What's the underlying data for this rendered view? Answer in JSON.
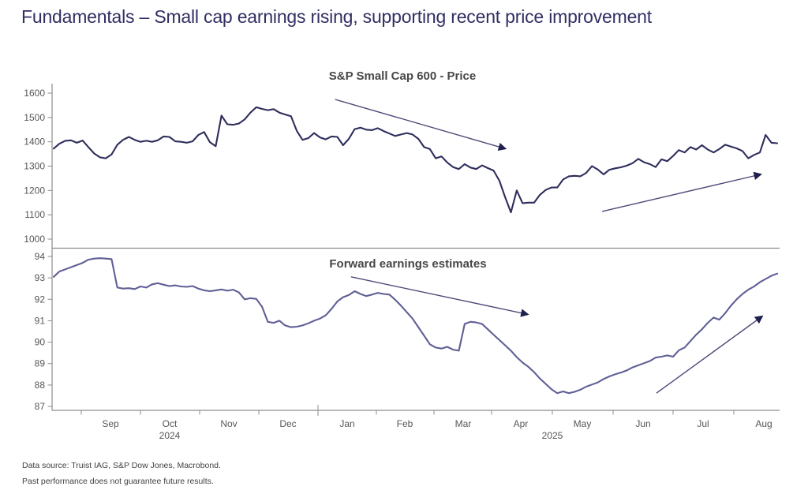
{
  "title": "Fundamentals – Small cap earnings rising, supporting recent price improvement",
  "footer": {
    "source": "Data source: Truist IAG, S&P Dow Jones, Macrobond.",
    "disclaimer": "Past performance does not guarantee future results."
  },
  "colors": {
    "title_text": "#312f63",
    "panel_title_text": "#474747",
    "price_line": "#2e2e5c",
    "earnings_line": "#5f5f96",
    "arrow": "#4c4b78",
    "arrowhead": "#1f1f4e",
    "axis": "#8c8c8c",
    "tick_text": "#575757",
    "footer_text": "#414141"
  },
  "x_axis": {
    "months": [
      {
        "label": "Sep",
        "f": 0.0785
      },
      {
        "label": "Oct",
        "f": 0.1603
      },
      {
        "label": "Nov",
        "f": 0.2421
      },
      {
        "label": "Dec",
        "f": 0.3239
      },
      {
        "label": "Jan",
        "f": 0.4057
      },
      {
        "label": "Feb",
        "f": 0.4853
      },
      {
        "label": "Mar",
        "f": 0.566
      },
      {
        "label": "Apr",
        "f": 0.6456
      },
      {
        "label": "May",
        "f": 0.7306
      },
      {
        "label": "Jun",
        "f": 0.8146
      },
      {
        "label": "Jul",
        "f": 0.8975
      },
      {
        "label": "Aug",
        "f": 0.9815
      }
    ],
    "years": [
      {
        "label": "2024",
        "f": 0.1603
      },
      {
        "label": "2025",
        "f": 0.6892
      }
    ],
    "month_boundaries": [
      0.0382,
      0.12,
      0.2017,
      0.2835,
      0.3653,
      0.446,
      0.5256,
      0.6052,
      0.6892,
      0.7732,
      0.856,
      0.94
    ],
    "year_boundary_f": 0.3653
  },
  "chart_data": [
    {
      "type": "line",
      "id": "price",
      "title": "S&P Small Cap 600 - Price",
      "x_range": [
        "Aug 2024",
        "Aug 2025"
      ],
      "ylim": [
        1000,
        1600
      ],
      "yticks": [
        1600,
        1500,
        1400,
        1300,
        1200,
        1100,
        1000
      ],
      "color": "#2e2e5c",
      "values": [
        1372,
        1392,
        1404,
        1406,
        1396,
        1405,
        1378,
        1352,
        1336,
        1332,
        1348,
        1388,
        1408,
        1420,
        1408,
        1400,
        1404,
        1400,
        1406,
        1422,
        1420,
        1402,
        1400,
        1396,
        1402,
        1428,
        1440,
        1398,
        1382,
        1508,
        1472,
        1470,
        1475,
        1492,
        1520,
        1542,
        1535,
        1530,
        1534,
        1520,
        1512,
        1505,
        1445,
        1408,
        1415,
        1436,
        1418,
        1410,
        1422,
        1420,
        1386,
        1412,
        1452,
        1458,
        1450,
        1448,
        1456,
        1444,
        1434,
        1424,
        1430,
        1436,
        1430,
        1412,
        1378,
        1370,
        1332,
        1340,
        1315,
        1296,
        1288,
        1308,
        1294,
        1288,
        1303,
        1292,
        1282,
        1240,
        1172,
        1110,
        1200,
        1148,
        1150,
        1150,
        1182,
        1202,
        1212,
        1212,
        1245,
        1258,
        1260,
        1258,
        1272,
        1300,
        1286,
        1266,
        1285,
        1291,
        1295,
        1302,
        1312,
        1330,
        1316,
        1308,
        1296,
        1328,
        1320,
        1342,
        1366,
        1356,
        1378,
        1368,
        1386,
        1368,
        1356,
        1370,
        1388,
        1380,
        1373,
        1362,
        1332,
        1346,
        1356,
        1428,
        1396,
        1394
      ],
      "trend_arrows": [
        {
          "x1": 0.389,
          "y1": 1574,
          "x2": 0.624,
          "y2": 1372,
          "direction": "down"
        },
        {
          "x1": 0.758,
          "y1": 1114,
          "x2": 0.977,
          "y2": 1266,
          "direction": "up"
        }
      ]
    },
    {
      "type": "line",
      "id": "earnings",
      "title": "Forward earnings estimates",
      "x_range": [
        "Aug 2024",
        "Aug 2025"
      ],
      "ylim": [
        87,
        94
      ],
      "yticks": [
        94,
        93,
        92,
        91,
        90,
        89,
        88,
        87
      ],
      "color": "#5f5f96",
      "values": [
        93.05,
        93.3,
        93.4,
        93.5,
        93.6,
        93.7,
        93.85,
        93.9,
        93.92,
        93.9,
        93.88,
        92.55,
        92.5,
        92.52,
        92.48,
        92.6,
        92.55,
        92.7,
        92.75,
        92.68,
        92.62,
        92.65,
        92.6,
        92.58,
        92.62,
        92.5,
        92.42,
        92.38,
        92.42,
        92.46,
        92.4,
        92.45,
        92.32,
        92.0,
        92.05,
        92.02,
        91.65,
        90.95,
        90.9,
        91.0,
        90.78,
        90.7,
        90.72,
        90.78,
        90.88,
        91.0,
        91.1,
        91.25,
        91.55,
        91.9,
        92.1,
        92.2,
        92.38,
        92.25,
        92.15,
        92.22,
        92.3,
        92.25,
        92.22,
        91.98,
        91.7,
        91.4,
        91.1,
        90.7,
        90.3,
        89.9,
        89.75,
        89.7,
        89.78,
        89.65,
        89.6,
        90.85,
        90.95,
        90.92,
        90.85,
        90.6,
        90.35,
        90.1,
        89.85,
        89.6,
        89.3,
        89.05,
        88.85,
        88.6,
        88.3,
        88.05,
        87.8,
        87.62,
        87.7,
        87.62,
        87.68,
        87.78,
        87.92,
        88.02,
        88.12,
        88.28,
        88.4,
        88.5,
        88.58,
        88.68,
        88.82,
        88.92,
        89.02,
        89.12,
        89.28,
        89.32,
        89.38,
        89.32,
        89.62,
        89.75,
        90.05,
        90.35,
        90.6,
        90.9,
        91.15,
        91.05,
        91.35,
        91.7,
        92.0,
        92.25,
        92.45,
        92.6,
        92.8,
        92.95,
        93.1,
        93.2
      ],
      "trend_arrows": [
        {
          "x1": 0.411,
          "y1": 93.05,
          "x2": 0.655,
          "y2": 91.3,
          "direction": "down"
        },
        {
          "x1": 0.833,
          "y1": 87.62,
          "x2": 0.979,
          "y2": 91.2,
          "direction": "up"
        }
      ]
    }
  ]
}
